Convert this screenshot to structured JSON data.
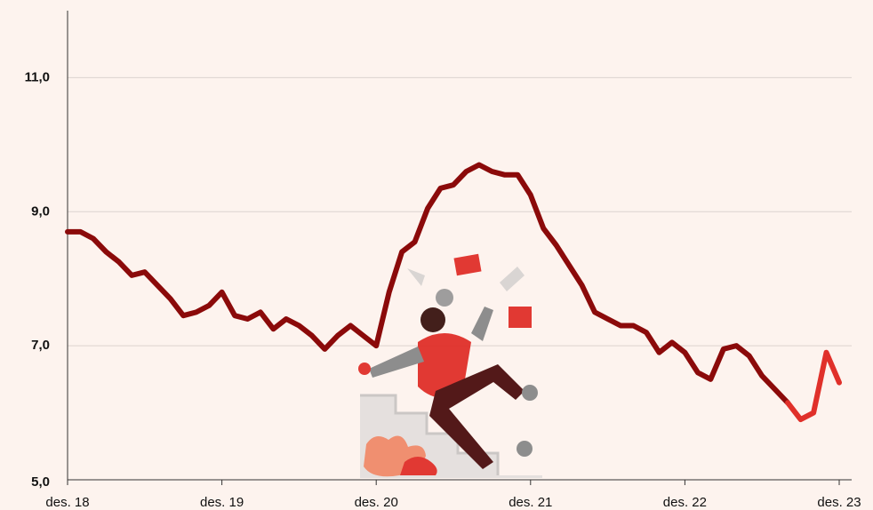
{
  "chart_data": {
    "type": "line",
    "categories": [
      "des. 18",
      null,
      null,
      null,
      null,
      null,
      null,
      null,
      null,
      null,
      null,
      null,
      "des. 19",
      null,
      null,
      null,
      null,
      null,
      null,
      null,
      null,
      null,
      null,
      null,
      "des. 20",
      null,
      null,
      null,
      null,
      null,
      null,
      null,
      null,
      null,
      null,
      null,
      "des. 21",
      null,
      null,
      null,
      null,
      null,
      null,
      null,
      null,
      null,
      null,
      null,
      "des. 22",
      null,
      null,
      null,
      null,
      null,
      null,
      null,
      null,
      null,
      null,
      null,
      "des. 23"
    ],
    "values": [
      8.7,
      8.7,
      8.6,
      8.4,
      8.25,
      8.05,
      8.1,
      7.9,
      7.7,
      7.45,
      7.5,
      7.6,
      7.8,
      7.45,
      7.4,
      7.5,
      7.25,
      7.4,
      7.3,
      7.15,
      6.95,
      7.15,
      7.3,
      7.15,
      7.0,
      7.8,
      8.4,
      8.55,
      9.05,
      9.35,
      9.4,
      9.6,
      9.7,
      9.6,
      9.55,
      9.55,
      9.25,
      8.75,
      8.5,
      8.2,
      7.9,
      7.5,
      7.4,
      7.3,
      7.3,
      7.2,
      6.9,
      7.05,
      6.9,
      6.6,
      6.5,
      6.95,
      7.0,
      6.85,
      6.55,
      6.35,
      6.15,
      5.9,
      6.0,
      6.9,
      6.45
    ],
    "color": "#8b0a0a",
    "recent_color": "#e0302a",
    "recent_from": 56,
    "ylim": [
      5,
      12
    ],
    "yticks": [
      {
        "value": 5,
        "label": "5,0"
      },
      {
        "value": 7,
        "label": "7,0"
      },
      {
        "value": 9,
        "label": "9,0"
      },
      {
        "value": 11,
        "label": "11,0"
      }
    ],
    "grid": true
  }
}
